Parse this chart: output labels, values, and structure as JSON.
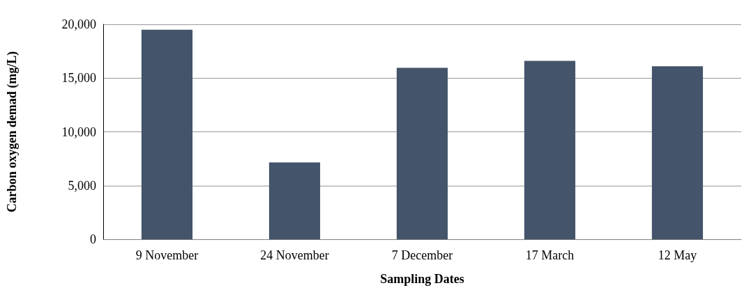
{
  "chart_data": {
    "type": "bar",
    "xlabel": "Sampling Dates",
    "ylabel": "Carbon oxygen demad (mg/L)",
    "categories": [
      "9 November",
      "24 November",
      "7 December",
      "17 March",
      "12 May"
    ],
    "values": [
      19500,
      7150,
      15950,
      16600,
      16100
    ],
    "color": "#44546a",
    "ylim": [
      0,
      20000
    ],
    "yticks": [
      {
        "value": 0,
        "label": "0"
      },
      {
        "value": 5000,
        "label": "5,000"
      },
      {
        "value": 10000,
        "label": "10,000"
      },
      {
        "value": 15000,
        "label": "15,000"
      },
      {
        "value": 20000,
        "label": "20,000"
      }
    ],
    "grid": "y"
  }
}
